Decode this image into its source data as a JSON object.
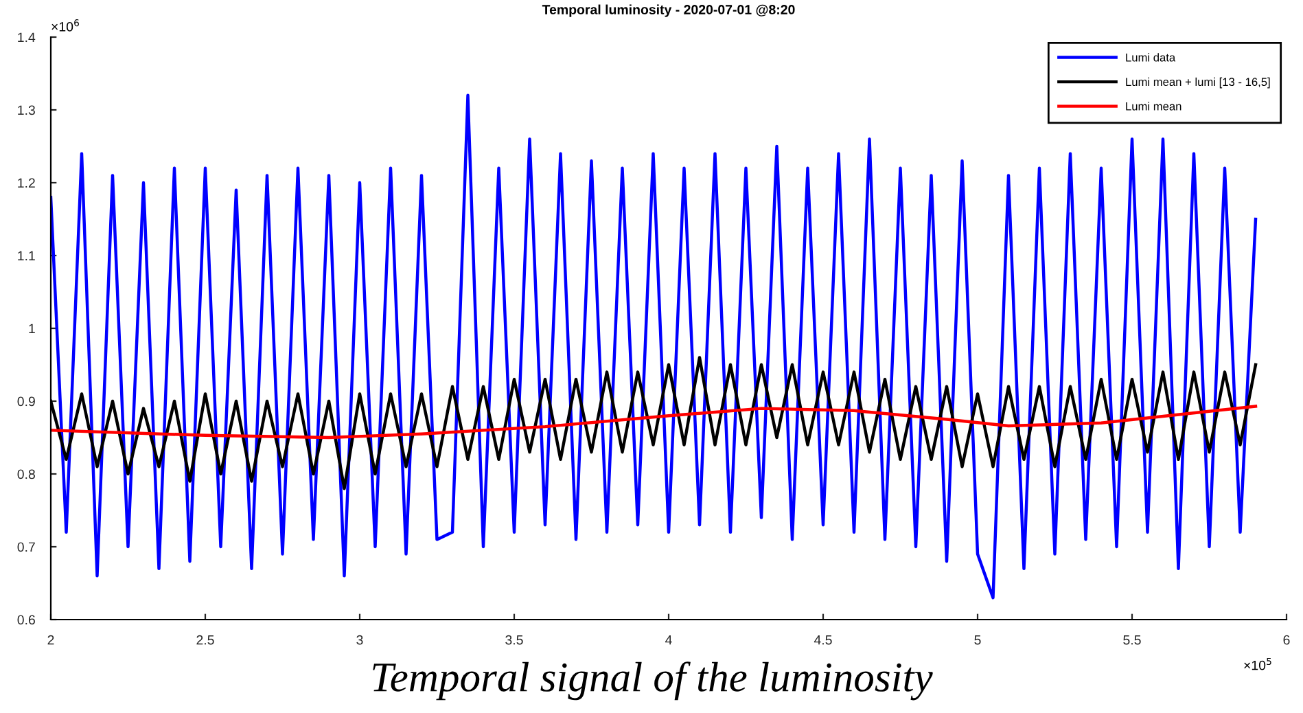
{
  "chart_data": {
    "type": "line",
    "title": "Temporal luminosity - 2020-07-01 @8:20",
    "x": [
      2.0,
      2.05,
      2.1,
      2.15,
      2.2,
      2.25,
      2.3,
      2.35,
      2.4,
      2.45,
      2.5,
      2.55,
      2.6,
      2.65,
      2.7,
      2.75,
      2.8,
      2.85,
      2.9,
      2.95,
      3.0,
      3.05,
      3.1,
      3.15,
      3.2,
      3.25,
      3.3,
      3.35,
      3.4,
      3.45,
      3.5,
      3.55,
      3.6,
      3.65,
      3.7,
      3.75,
      3.8,
      3.85,
      3.9,
      3.95,
      4.0,
      4.05,
      4.1,
      4.15,
      4.2,
      4.25,
      4.3,
      4.35,
      4.4,
      4.45,
      4.5,
      4.55,
      4.6,
      4.65,
      4.7,
      4.75,
      4.8,
      4.85,
      4.9,
      4.95,
      5.0,
      5.05,
      5.1,
      5.15,
      5.2,
      5.25,
      5.3,
      5.35,
      5.4,
      5.45,
      5.5,
      5.55,
      5.6,
      5.65,
      5.7,
      5.75,
      5.8,
      5.85,
      5.9
    ],
    "series": [
      {
        "name": "Lumi data",
        "color": "#0000ff",
        "values": [
          1.18,
          0.72,
          1.24,
          0.66,
          1.21,
          0.7,
          1.2,
          0.67,
          1.22,
          0.68,
          1.22,
          0.7,
          1.19,
          0.67,
          1.21,
          0.69,
          1.22,
          0.71,
          1.21,
          0.66,
          1.2,
          0.7,
          1.22,
          0.69,
          1.21,
          0.71,
          0.72,
          1.32,
          0.7,
          1.22,
          0.72,
          1.26,
          0.73,
          1.24,
          0.71,
          1.23,
          0.72,
          1.22,
          0.73,
          1.24,
          0.72,
          1.22,
          0.73,
          1.24,
          0.72,
          1.22,
          0.74,
          1.25,
          0.71,
          1.22,
          0.73,
          1.24,
          0.72,
          1.26,
          0.71,
          1.22,
          0.7,
          1.21,
          0.68,
          1.23,
          0.69,
          0.63,
          1.21,
          0.67,
          1.22,
          0.69,
          1.24,
          0.71,
          1.22,
          0.7,
          1.26,
          0.72,
          1.26,
          0.67,
          1.24,
          0.7,
          1.22,
          0.72,
          1.15
        ]
      },
      {
        "name": "Lumi mean + lumi [13 - 16,5]",
        "color": "#000000",
        "values": [
          0.9,
          0.82,
          0.91,
          0.81,
          0.9,
          0.8,
          0.89,
          0.81,
          0.9,
          0.79,
          0.91,
          0.8,
          0.9,
          0.79,
          0.9,
          0.81,
          0.91,
          0.8,
          0.9,
          0.78,
          0.91,
          0.8,
          0.91,
          0.81,
          0.91,
          0.81,
          0.92,
          0.82,
          0.92,
          0.82,
          0.93,
          0.83,
          0.93,
          0.82,
          0.93,
          0.83,
          0.94,
          0.83,
          0.94,
          0.84,
          0.95,
          0.84,
          0.96,
          0.84,
          0.95,
          0.84,
          0.95,
          0.85,
          0.95,
          0.84,
          0.94,
          0.84,
          0.94,
          0.83,
          0.93,
          0.82,
          0.92,
          0.82,
          0.92,
          0.81,
          0.91,
          0.81,
          0.92,
          0.82,
          0.92,
          0.81,
          0.92,
          0.82,
          0.93,
          0.82,
          0.93,
          0.83,
          0.94,
          0.82,
          0.94,
          0.83,
          0.94,
          0.84,
          0.95
        ]
      },
      {
        "name": "Lumi mean",
        "color": "#ff0000",
        "x": [
          2.0,
          2.5,
          2.9,
          3.2,
          3.6,
          4.0,
          4.3,
          4.6,
          4.9,
          5.1,
          5.4,
          5.9
        ],
        "values": [
          0.86,
          0.853,
          0.85,
          0.855,
          0.865,
          0.88,
          0.89,
          0.887,
          0.875,
          0.866,
          0.87,
          0.893
        ]
      }
    ],
    "xlim": [
      2,
      6
    ],
    "xticks": [
      2,
      2.5,
      3,
      3.5,
      4,
      4.5,
      5,
      5.5,
      6
    ],
    "ylim": [
      0.6,
      1.4
    ],
    "yticks": [
      0.6,
      0.7,
      0.8,
      0.9,
      1,
      1.1,
      1.2,
      1.3,
      1.4
    ],
    "annotations": [
      "×10$^{6}$",
      "×10$^{5}$",
      "Temporal signal of the luminosity"
    ],
    "legend": "top right",
    "grid": false,
    "marker": "none",
    "line_style": "solid"
  }
}
